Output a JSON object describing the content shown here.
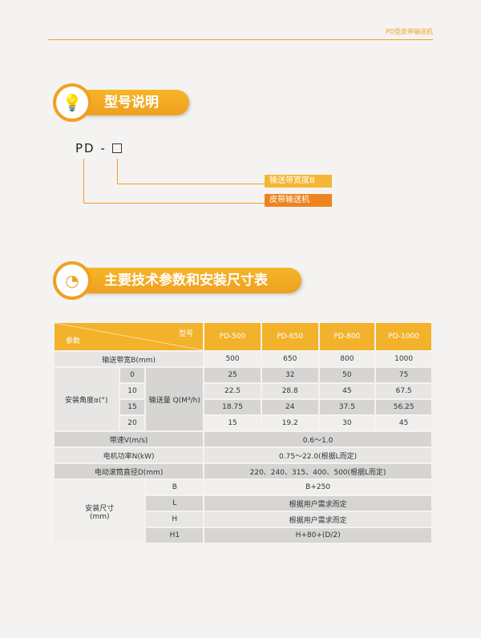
{
  "header": {
    "title": "PD型皮带输送机"
  },
  "section1": {
    "title": "型号说明",
    "icon": "lightbulb-icon"
  },
  "model": {
    "code": "PD -",
    "labels": [
      "输送带宽度B",
      "皮带输送机"
    ]
  },
  "section2": {
    "title": "主要技术参数和安装尺寸表",
    "icon": "pie-chart-icon"
  },
  "table": {
    "corner_top": "型号",
    "corner_bottom": "参数",
    "models": [
      "PD-500",
      "PD-650",
      "PD-800",
      "PD-1000"
    ],
    "width_label": "输送带宽B(mm)",
    "widths": [
      "500",
      "650",
      "800",
      "1000"
    ],
    "angle_label": "安装角度α(°)",
    "flow_label": "输送量 Q(M³/h)",
    "angles": [
      {
        "a": "0",
        "v": [
          "25",
          "32",
          "50",
          "75"
        ]
      },
      {
        "a": "10",
        "v": [
          "22.5",
          "28.8",
          "45",
          "67.5"
        ]
      },
      {
        "a": "15",
        "v": [
          "18.75",
          "24",
          "37.5",
          "56.25"
        ]
      },
      {
        "a": "20",
        "v": [
          "15",
          "19.2",
          "30",
          "45"
        ]
      }
    ],
    "specs": [
      {
        "k": "带速V(m/s)",
        "v": "0.6～1.0"
      },
      {
        "k": "电机功率N(kW)",
        "v": "0.75～22.0(根据L而定)"
      },
      {
        "k": "电动滚筒直径D(mm)",
        "v": "220、240、315、400、500(根据L而定)"
      }
    ],
    "install_label": "安装尺寸",
    "install_unit": "(mm)",
    "install": [
      {
        "k": "B",
        "v": "B+250"
      },
      {
        "k": "L",
        "v": "根据用户需求而定"
      },
      {
        "k": "H",
        "v": "根据用户需求而定"
      },
      {
        "k": "H1",
        "v": "H+80+(D/2)"
      }
    ]
  }
}
